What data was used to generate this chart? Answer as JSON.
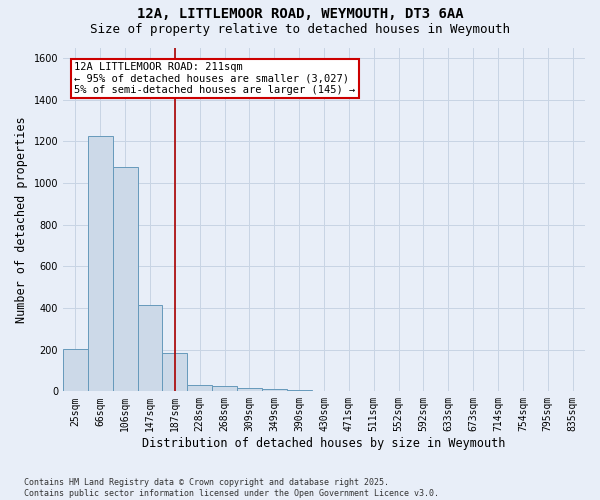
{
  "title_line1": "12A, LITTLEMOOR ROAD, WEYMOUTH, DT3 6AA",
  "title_line2": "Size of property relative to detached houses in Weymouth",
  "xlabel": "Distribution of detached houses by size in Weymouth",
  "ylabel": "Number of detached properties",
  "bar_labels": [
    "25sqm",
    "66sqm",
    "106sqm",
    "147sqm",
    "187sqm",
    "228sqm",
    "268sqm",
    "309sqm",
    "349sqm",
    "390sqm",
    "430sqm",
    "471sqm",
    "511sqm",
    "552sqm",
    "592sqm",
    "633sqm",
    "673sqm",
    "714sqm",
    "754sqm",
    "795sqm",
    "835sqm"
  ],
  "bar_values": [
    205,
    1225,
    1075,
    415,
    185,
    30,
    25,
    15,
    10,
    5,
    0,
    0,
    0,
    0,
    0,
    0,
    0,
    0,
    0,
    0,
    0
  ],
  "bar_color": "#ccd9e8",
  "bar_edge_color": "#6699bb",
  "vline_x": 4.5,
  "vline_color": "#aa0000",
  "annotation_text": "12A LITTLEMOOR ROAD: 211sqm\n← 95% of detached houses are smaller (3,027)\n5% of semi-detached houses are larger (145) →",
  "annotation_box_color": "white",
  "annotation_box_edge": "#cc0000",
  "ylim": [
    0,
    1650
  ],
  "yticks": [
    0,
    200,
    400,
    600,
    800,
    1000,
    1200,
    1400,
    1600
  ],
  "grid_color": "#c8d4e4",
  "background_color": "#e8eef8",
  "footnote": "Contains HM Land Registry data © Crown copyright and database right 2025.\nContains public sector information licensed under the Open Government Licence v3.0.",
  "title_fontsize": 10,
  "subtitle_fontsize": 9,
  "tick_fontsize": 7,
  "label_fontsize": 8.5,
  "annot_fontsize": 7.5,
  "footnote_fontsize": 6
}
